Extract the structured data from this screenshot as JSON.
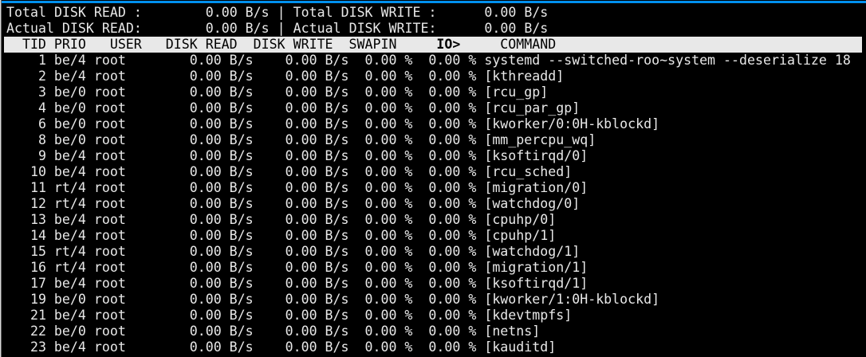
{
  "app": "iotop",
  "colors": {
    "background": "#000000",
    "foreground": "#e8e8e8",
    "header_bg": "#e8e8e8",
    "header_fg": "#000000",
    "window_top_edge": "#0090ef",
    "window_left_edge": "#d9d9d9"
  },
  "summary": {
    "total_read_label": "Total DISK READ :",
    "total_read_value": "0.00 B/s",
    "total_write_label": "Total DISK WRITE :",
    "total_write_value": "0.00 B/s",
    "actual_read_label": "Actual DISK READ:",
    "actual_read_value": "0.00 B/s",
    "actual_write_label": "Actual DISK WRITE:",
    "actual_write_value": "0.00 B/s",
    "separator": "|"
  },
  "process_table": {
    "headers": {
      "tid": "TID",
      "prio": "PRIO",
      "user": "USER",
      "disk_read": "DISK READ",
      "disk_write": "DISK WRITE",
      "swapin": "SWAPIN",
      "io": "IO>",
      "command": "COMMAND"
    },
    "sort_column": "IO>",
    "rows": [
      {
        "tid": "1",
        "prio": "be/4",
        "user": "root",
        "disk_read": "0.00 B/s",
        "disk_write": "0.00 B/s",
        "swapin": "0.00 %",
        "io": "0.00 %",
        "command": "systemd --switched-roo~system --deserialize 18"
      },
      {
        "tid": "2",
        "prio": "be/4",
        "user": "root",
        "disk_read": "0.00 B/s",
        "disk_write": "0.00 B/s",
        "swapin": "0.00 %",
        "io": "0.00 %",
        "command": "[kthreadd]"
      },
      {
        "tid": "3",
        "prio": "be/0",
        "user": "root",
        "disk_read": "0.00 B/s",
        "disk_write": "0.00 B/s",
        "swapin": "0.00 %",
        "io": "0.00 %",
        "command": "[rcu_gp]"
      },
      {
        "tid": "4",
        "prio": "be/0",
        "user": "root",
        "disk_read": "0.00 B/s",
        "disk_write": "0.00 B/s",
        "swapin": "0.00 %",
        "io": "0.00 %",
        "command": "[rcu_par_gp]"
      },
      {
        "tid": "6",
        "prio": "be/0",
        "user": "root",
        "disk_read": "0.00 B/s",
        "disk_write": "0.00 B/s",
        "swapin": "0.00 %",
        "io": "0.00 %",
        "command": "[kworker/0:0H-kblockd]"
      },
      {
        "tid": "8",
        "prio": "be/0",
        "user": "root",
        "disk_read": "0.00 B/s",
        "disk_write": "0.00 B/s",
        "swapin": "0.00 %",
        "io": "0.00 %",
        "command": "[mm_percpu_wq]"
      },
      {
        "tid": "9",
        "prio": "be/4",
        "user": "root",
        "disk_read": "0.00 B/s",
        "disk_write": "0.00 B/s",
        "swapin": "0.00 %",
        "io": "0.00 %",
        "command": "[ksoftirqd/0]"
      },
      {
        "tid": "10",
        "prio": "be/4",
        "user": "root",
        "disk_read": "0.00 B/s",
        "disk_write": "0.00 B/s",
        "swapin": "0.00 %",
        "io": "0.00 %",
        "command": "[rcu_sched]"
      },
      {
        "tid": "11",
        "prio": "rt/4",
        "user": "root",
        "disk_read": "0.00 B/s",
        "disk_write": "0.00 B/s",
        "swapin": "0.00 %",
        "io": "0.00 %",
        "command": "[migration/0]"
      },
      {
        "tid": "12",
        "prio": "rt/4",
        "user": "root",
        "disk_read": "0.00 B/s",
        "disk_write": "0.00 B/s",
        "swapin": "0.00 %",
        "io": "0.00 %",
        "command": "[watchdog/0]"
      },
      {
        "tid": "13",
        "prio": "be/4",
        "user": "root",
        "disk_read": "0.00 B/s",
        "disk_write": "0.00 B/s",
        "swapin": "0.00 %",
        "io": "0.00 %",
        "command": "[cpuhp/0]"
      },
      {
        "tid": "14",
        "prio": "be/4",
        "user": "root",
        "disk_read": "0.00 B/s",
        "disk_write": "0.00 B/s",
        "swapin": "0.00 %",
        "io": "0.00 %",
        "command": "[cpuhp/1]"
      },
      {
        "tid": "15",
        "prio": "rt/4",
        "user": "root",
        "disk_read": "0.00 B/s",
        "disk_write": "0.00 B/s",
        "swapin": "0.00 %",
        "io": "0.00 %",
        "command": "[watchdog/1]"
      },
      {
        "tid": "16",
        "prio": "rt/4",
        "user": "root",
        "disk_read": "0.00 B/s",
        "disk_write": "0.00 B/s",
        "swapin": "0.00 %",
        "io": "0.00 %",
        "command": "[migration/1]"
      },
      {
        "tid": "17",
        "prio": "be/4",
        "user": "root",
        "disk_read": "0.00 B/s",
        "disk_write": "0.00 B/s",
        "swapin": "0.00 %",
        "io": "0.00 %",
        "command": "[ksoftirqd/1]"
      },
      {
        "tid": "19",
        "prio": "be/0",
        "user": "root",
        "disk_read": "0.00 B/s",
        "disk_write": "0.00 B/s",
        "swapin": "0.00 %",
        "io": "0.00 %",
        "command": "[kworker/1:0H-kblockd]"
      },
      {
        "tid": "21",
        "prio": "be/4",
        "user": "root",
        "disk_read": "0.00 B/s",
        "disk_write": "0.00 B/s",
        "swapin": "0.00 %",
        "io": "0.00 %",
        "command": "[kdevtmpfs]"
      },
      {
        "tid": "22",
        "prio": "be/0",
        "user": "root",
        "disk_read": "0.00 B/s",
        "disk_write": "0.00 B/s",
        "swapin": "0.00 %",
        "io": "0.00 %",
        "command": "[netns]"
      },
      {
        "tid": "23",
        "prio": "be/4",
        "user": "root",
        "disk_read": "0.00 B/s",
        "disk_write": "0.00 B/s",
        "swapin": "0.00 %",
        "io": "0.00 %",
        "command": "[kauditd]"
      }
    ]
  }
}
